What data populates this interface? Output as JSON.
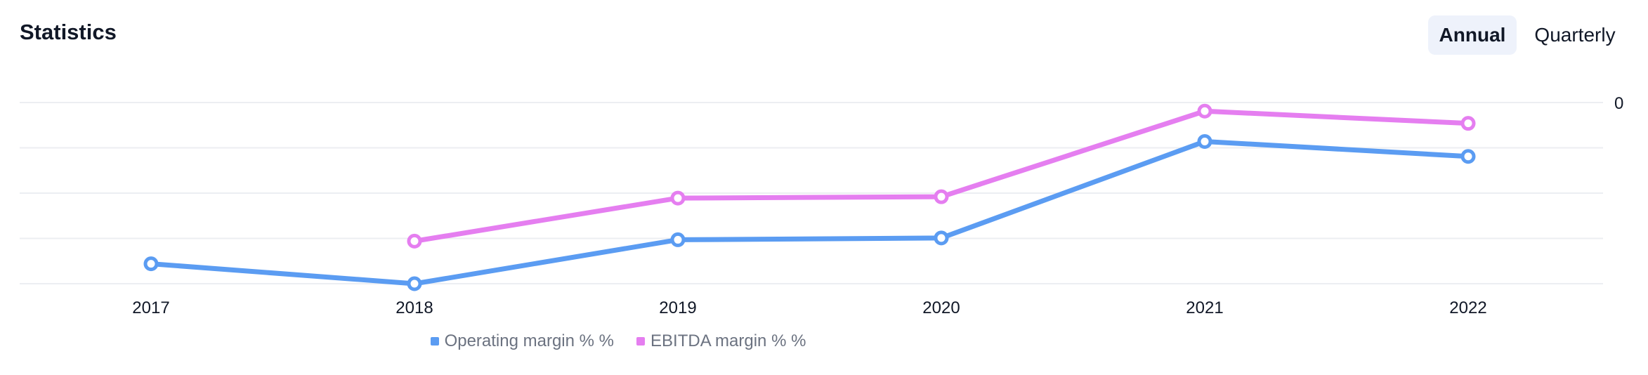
{
  "header": {
    "title": "Statistics",
    "period_toggle": {
      "annual_label": "Annual",
      "quarterly_label": "Quarterly",
      "selected": "Annual"
    }
  },
  "chart_data": {
    "type": "line",
    "x": [
      "2017",
      "2018",
      "2019",
      "2020",
      "2021",
      "2022"
    ],
    "y_tick_labels": [
      "0"
    ],
    "ylim": [
      -40,
      0
    ],
    "grid": true,
    "legend_position": "bottom",
    "series": [
      {
        "name": "Operating margin % %",
        "color": "#5b9cf2",
        "values": [
          -35.6,
          -40,
          -30.3,
          -29.9,
          -8.6,
          -11.9
        ]
      },
      {
        "name": "EBITDA margin % %",
        "color": "#e57ef0",
        "values": [
          null,
          -30.6,
          -21.1,
          -20.8,
          -1.9,
          -4.6
        ]
      }
    ]
  }
}
